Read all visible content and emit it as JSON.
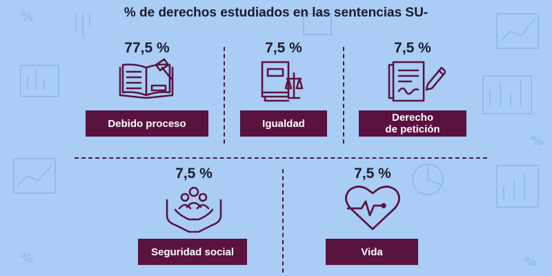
{
  "title": "% de derechos estudiados en las sentencias SU-",
  "colors": {
    "background": "#a9cdf5",
    "label_bg": "#5a1240",
    "icon_stroke": "#5a1240",
    "text": "#1d1a2c"
  },
  "items": [
    {
      "percent": "77,5 %",
      "label": "Debido proceso",
      "icon": "law-book-gavel-icon"
    },
    {
      "percent": "7,5 %",
      "label": "Igualdad",
      "icon": "book-scales-icon"
    },
    {
      "percent": "7,5 %",
      "label": "Derecho\nde petición",
      "icon": "document-pen-icon"
    },
    {
      "percent": "7,5 %",
      "label": "Seguridad social",
      "icon": "hands-people-icon"
    },
    {
      "percent": "7,5 %",
      "label": "Vida",
      "icon": "heart-pulse-icon"
    }
  ]
}
